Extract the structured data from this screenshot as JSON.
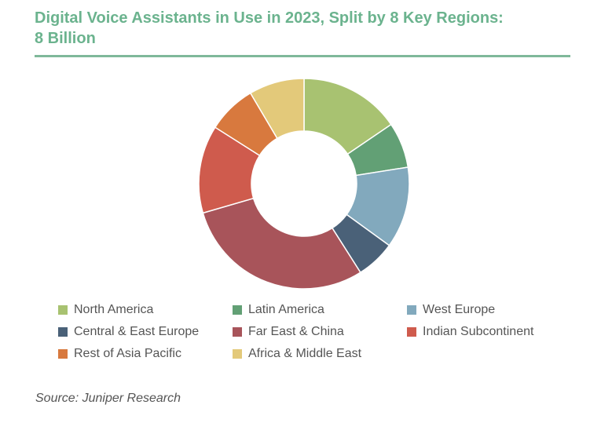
{
  "title": "Digital Voice Assistants in Use in 2023, Split by 8 Key Regions: 8 Billion",
  "source": "Source: Juniper Research",
  "chart_data": {
    "type": "pie",
    "donut": true,
    "title": "Digital Voice Assistants in Use in 2023, Split by 8 Key Regions: 8 Billion",
    "legend_position": "bottom",
    "series": [
      {
        "name": "North America",
        "value": 15.5,
        "color": "#a8c271"
      },
      {
        "name": "Latin America",
        "value": 7.0,
        "color": "#62a075"
      },
      {
        "name": "West Europe",
        "value": 12.5,
        "color": "#82a9bd"
      },
      {
        "name": "Central & East Europe",
        "value": 6.0,
        "color": "#4a6178"
      },
      {
        "name": "Far East & China",
        "value": 29.5,
        "color": "#a8545a"
      },
      {
        "name": "Indian Subcontinent",
        "value": 13.5,
        "color": "#cf5b4d"
      },
      {
        "name": "Rest of Asia Pacific",
        "value": 7.5,
        "color": "#d8793e"
      },
      {
        "name": "Africa & Middle East",
        "value": 8.5,
        "color": "#e3c97a"
      }
    ]
  }
}
